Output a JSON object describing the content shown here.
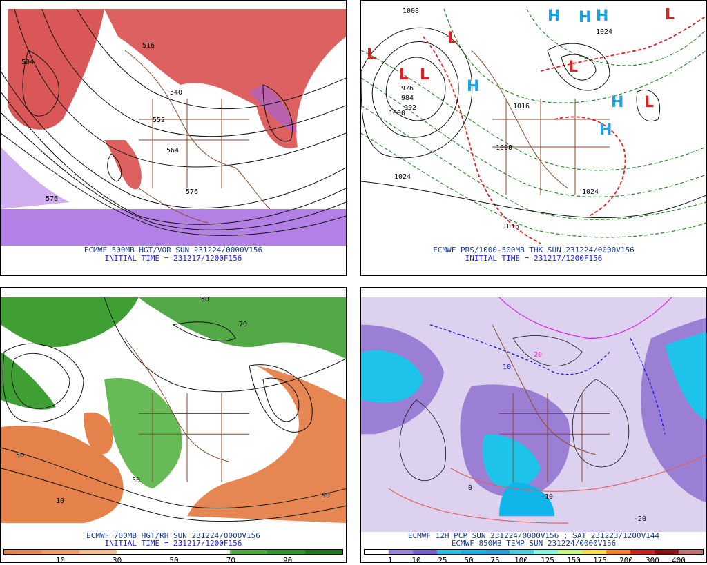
{
  "panels": [
    {
      "caption": "ECMWF 500MB HGT/VOR SUN 231224/0000V156",
      "initial": "INITIAL TIME = 231217/1200F156",
      "labels": [
        "504",
        "516",
        "540",
        "552",
        "564",
        "576",
        "576"
      ]
    },
    {
      "caption": "ECMWF PRS/1000-500MB THK SUN 231224/0000V156",
      "initial": "INITIAL TIME = 231217/1200F156",
      "labels": [
        "1008",
        "1024",
        "1000",
        "976",
        "984",
        "992",
        "1024",
        "1016",
        "1008",
        "1016",
        "1024"
      ],
      "highs": [
        "H",
        "H",
        "H",
        "H",
        "H",
        "H"
      ],
      "lows": [
        "L",
        "L",
        "L",
        "L",
        "L",
        "L",
        "L"
      ]
    },
    {
      "caption": "ECMWF 700MB HGT/RH SUN 231224/0000V156",
      "initial": "INITIAL TIME = 231217/1200F156",
      "labels": [
        "50",
        "10",
        "30",
        "50",
        "70",
        "90"
      ],
      "legend_ticks": [
        "10",
        "30",
        "50",
        "70",
        "90"
      ],
      "legend_colors": [
        "#e5814a",
        "#f09a5c",
        "#f6c08f",
        "#ffffff",
        "#ffffff",
        "#ffffff",
        "#4caf3a",
        "#2e9a2a",
        "#1a7a1a"
      ]
    },
    {
      "caption": "ECMWF 12H PCP SUN 231224/0000V156 ; SAT 231223/1200V144",
      "caption2": "ECMWF 850MB TEMP SUN 231224/0000V156",
      "labels": [
        "20",
        "10",
        "0",
        "-10",
        "-20"
      ],
      "legend_ticks": [
        "1",
        "10",
        "25",
        "50",
        "75",
        "100",
        "125",
        "150",
        "175",
        "200",
        "300",
        "400"
      ],
      "legend_colors": [
        "#ffffff",
        "#9b7fd4",
        "#7a5fd0",
        "#1ec3ea",
        "#0fb4e8",
        "#20a0e0",
        "#40d0e0",
        "#80ffe0",
        "#c8ff80",
        "#ffe040",
        "#ff8020",
        "#d02020",
        "#901010",
        "#c07070"
      ]
    }
  ]
}
